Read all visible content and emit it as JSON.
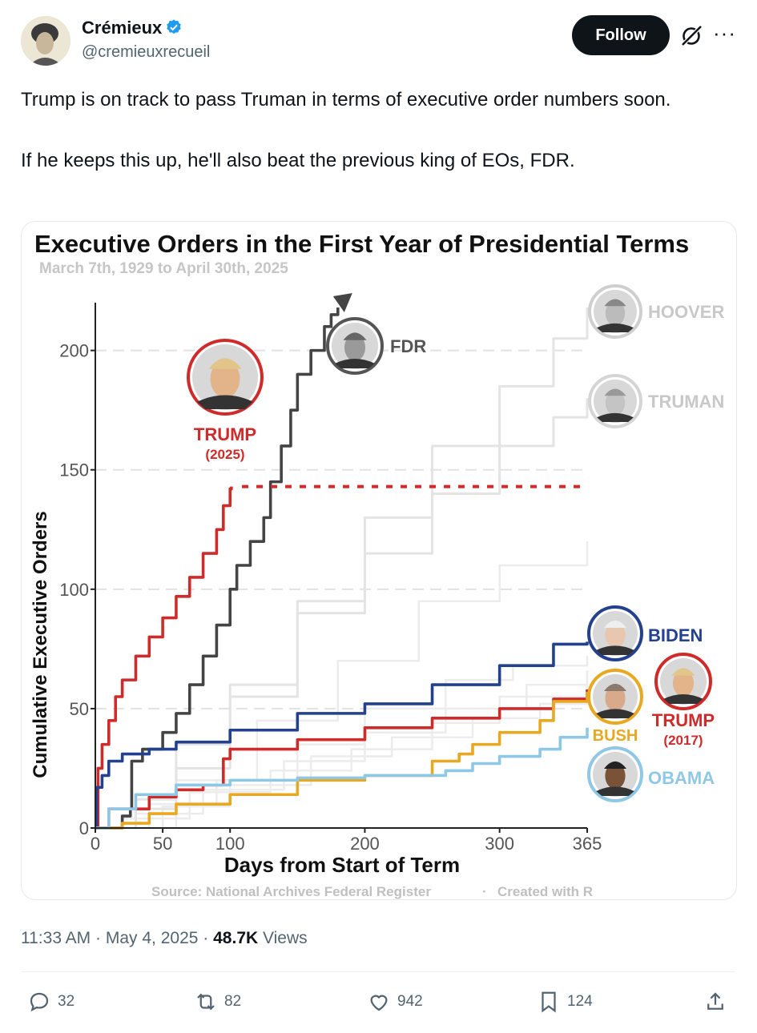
{
  "author": {
    "name": "Crémieux",
    "handle": "@cremieuxrecueil",
    "follow_label": "Follow",
    "more_label": "···"
  },
  "tweet": {
    "line1": "Trump is on track to pass Truman in terms of executive order numbers soon.",
    "line2": "If he keeps this up, he'll also beat the previous king of EOs, FDR."
  },
  "chart": {
    "title": "Executive Orders in the First Year of Presidential Terms",
    "subtitle": "March 7th, 1929 to April 30th, 2025",
    "source": "Source: National Archives Federal Register",
    "credit": "Created with R",
    "separator": "·",
    "labels": {
      "hoover": "HOOVER",
      "truman": "TRUMAN",
      "fdr": "FDR",
      "trump2025": "TRUMP",
      "trump2025_year": "(2025)",
      "biden": "BIDEN",
      "bush": "BUSH",
      "trump2017": "TRUMP",
      "trump2017_year": "(2017)",
      "obama": "OBAMA"
    }
  },
  "chart_data": {
    "type": "line",
    "title": "Executive Orders in the First Year of Presidential Terms",
    "subtitle": "March 7th, 1929 to April 30th, 2025",
    "xlabel": "Days from Start of Term",
    "ylabel": "Cumulative Executive Orders",
    "xlim": [
      0,
      365
    ],
    "ylim": [
      0,
      220
    ],
    "x_ticks": [
      0,
      50,
      100,
      200,
      300,
      365
    ],
    "y_ticks": [
      0,
      50,
      100,
      150,
      200
    ],
    "grid": "horizontal dashed",
    "series": [
      {
        "name": "HOOVER",
        "color": "#e4e4e4",
        "points": [
          [
            0,
            0
          ],
          [
            30,
            8
          ],
          [
            60,
            25
          ],
          [
            100,
            55
          ],
          [
            150,
            95
          ],
          [
            200,
            130
          ],
          [
            250,
            160
          ],
          [
            300,
            185
          ],
          [
            340,
            205
          ],
          [
            365,
            218
          ]
        ]
      },
      {
        "name": "TRUMAN",
        "color": "#e4e4e4",
        "points": [
          [
            0,
            0
          ],
          [
            30,
            12
          ],
          [
            60,
            35
          ],
          [
            100,
            60
          ],
          [
            150,
            90
          ],
          [
            200,
            115
          ],
          [
            250,
            140
          ],
          [
            300,
            160
          ],
          [
            340,
            172
          ],
          [
            365,
            180
          ]
        ]
      },
      {
        "name": "FDR",
        "color": "#444444",
        "points": [
          [
            0,
            0
          ],
          [
            20,
            5
          ],
          [
            26,
            8
          ],
          [
            27,
            28
          ],
          [
            35,
            33
          ],
          [
            50,
            40
          ],
          [
            60,
            48
          ],
          [
            70,
            60
          ],
          [
            80,
            72
          ],
          [
            90,
            85
          ],
          [
            100,
            100
          ],
          [
            105,
            110
          ],
          [
            115,
            120
          ],
          [
            125,
            130
          ],
          [
            130,
            145
          ],
          [
            138,
            160
          ],
          [
            145,
            175
          ],
          [
            150,
            190
          ],
          [
            160,
            200
          ],
          [
            170,
            210
          ],
          [
            175,
            215
          ],
          [
            180,
            218
          ]
        ]
      },
      {
        "name": "TRUMP (2025)",
        "color": "#d02b2b",
        "points": [
          [
            0,
            0
          ],
          [
            2,
            25
          ],
          [
            5,
            35
          ],
          [
            10,
            45
          ],
          [
            15,
            55
          ],
          [
            20,
            62
          ],
          [
            30,
            72
          ],
          [
            40,
            80
          ],
          [
            50,
            88
          ],
          [
            60,
            97
          ],
          [
            70,
            105
          ],
          [
            80,
            115
          ],
          [
            90,
            125
          ],
          [
            95,
            135
          ],
          [
            100,
            142
          ],
          [
            101,
            143
          ]
        ]
      },
      {
        "name": "TRUMP (2025) projection",
        "color": "#d02b2b",
        "points": [
          [
            110,
            143
          ],
          [
            360,
            143
          ]
        ]
      },
      {
        "name": "BIDEN",
        "color": "#24418f",
        "points": [
          [
            0,
            0
          ],
          [
            1,
            17
          ],
          [
            5,
            22
          ],
          [
            10,
            28
          ],
          [
            20,
            31
          ],
          [
            40,
            33
          ],
          [
            60,
            36
          ],
          [
            100,
            41
          ],
          [
            150,
            48
          ],
          [
            200,
            52
          ],
          [
            250,
            60
          ],
          [
            300,
            68
          ],
          [
            340,
            77
          ],
          [
            365,
            78
          ]
        ]
      },
      {
        "name": "TRUMP (2017)",
        "color": "#d02b2b",
        "points": [
          [
            0,
            0
          ],
          [
            10,
            8
          ],
          [
            40,
            13
          ],
          [
            60,
            16
          ],
          [
            80,
            18
          ],
          [
            95,
            29
          ],
          [
            100,
            33
          ],
          [
            150,
            37
          ],
          [
            200,
            42
          ],
          [
            250,
            46
          ],
          [
            300,
            50
          ],
          [
            340,
            54
          ],
          [
            365,
            58
          ]
        ]
      },
      {
        "name": "BUSH",
        "color": "#e8a821",
        "points": [
          [
            0,
            0
          ],
          [
            20,
            2
          ],
          [
            40,
            6
          ],
          [
            60,
            10
          ],
          [
            100,
            14
          ],
          [
            150,
            20
          ],
          [
            200,
            22
          ],
          [
            250,
            28
          ],
          [
            270,
            31
          ],
          [
            280,
            35
          ],
          [
            300,
            40
          ],
          [
            330,
            45
          ],
          [
            340,
            53
          ],
          [
            365,
            57
          ]
        ]
      },
      {
        "name": "OBAMA",
        "color": "#8fc8e6",
        "points": [
          [
            0,
            0
          ],
          [
            10,
            8
          ],
          [
            30,
            14
          ],
          [
            60,
            18
          ],
          [
            100,
            20
          ],
          [
            150,
            21
          ],
          [
            200,
            22
          ],
          [
            250,
            22
          ],
          [
            260,
            24
          ],
          [
            280,
            27
          ],
          [
            300,
            30
          ],
          [
            330,
            33
          ],
          [
            345,
            38
          ],
          [
            365,
            42
          ]
        ]
      }
    ]
  },
  "footer": {
    "time": "11:33 AM",
    "dot": "·",
    "date": "May 4, 2025",
    "views_count": "48.7K",
    "views_label": "Views"
  },
  "actions": {
    "replies": "32",
    "reposts": "82",
    "likes": "942",
    "bookmarks": "124"
  },
  "colors": {
    "accent_verified": "#1d9bf0",
    "text_secondary": "#536471",
    "fdr": "#444444",
    "trump": "#d02b2b",
    "biden": "#24418f",
    "bush": "#e8a821",
    "obama": "#8fc8e6",
    "faded": "#e4e4e4"
  }
}
